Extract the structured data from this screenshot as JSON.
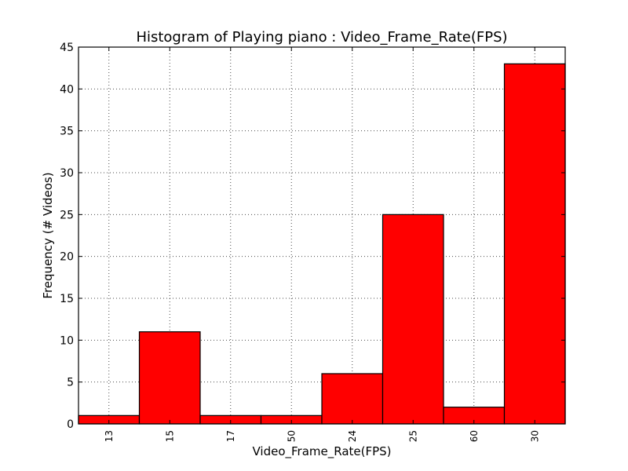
{
  "chart_data": {
    "type": "bar",
    "title": "Histogram of Playing piano : Video_Frame_Rate(FPS)",
    "xlabel": "Video_Frame_Rate(FPS)",
    "ylabel": "Frequency (# Videos)",
    "categories": [
      "13",
      "15",
      "17",
      "50",
      "24",
      "25",
      "60",
      "30"
    ],
    "values": [
      1,
      11,
      1,
      1,
      6,
      25,
      2,
      43
    ],
    "ylim": [
      0,
      45
    ],
    "yticks": [
      0,
      5,
      10,
      15,
      20,
      25,
      30,
      35,
      40,
      45
    ],
    "grid": true,
    "bar_color": "#ff0000",
    "legend": false
  }
}
